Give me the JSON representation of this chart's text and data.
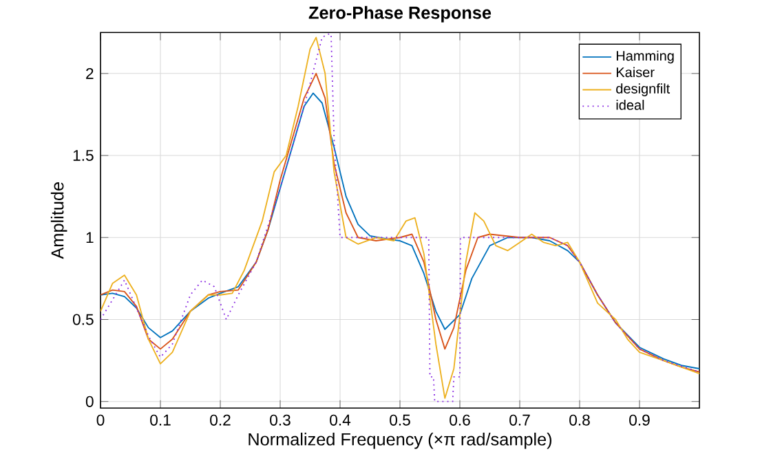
{
  "chart_data": {
    "type": "line",
    "title": "Zero-Phase Response",
    "xlabel": "Normalized Frequency  (×π rad/sample)",
    "ylabel": "Amplitude",
    "xlim": [
      0,
      1
    ],
    "ylim": [
      -0.04,
      2.25
    ],
    "xticks": [
      0,
      0.1,
      0.2,
      0.3,
      0.4,
      0.5,
      0.6,
      0.7,
      0.8,
      0.9
    ],
    "yticks": [
      0,
      0.5,
      1,
      1.5,
      2
    ],
    "grid": true,
    "legend": "top right",
    "marker": "none",
    "series": [
      {
        "name": "Hamming",
        "color": "#0072bd",
        "line_style": "solid",
        "x": [
          0,
          0.02,
          0.04,
          0.06,
          0.08,
          0.1,
          0.12,
          0.15,
          0.18,
          0.2,
          0.23,
          0.26,
          0.28,
          0.3,
          0.32,
          0.34,
          0.355,
          0.37,
          0.39,
          0.41,
          0.43,
          0.45,
          0.48,
          0.5,
          0.52,
          0.54,
          0.56,
          0.575,
          0.6,
          0.62,
          0.65,
          0.68,
          0.72,
          0.75,
          0.78,
          0.8,
          0.83,
          0.86,
          0.9,
          0.94,
          0.97,
          1
        ],
        "values": [
          0.65,
          0.66,
          0.64,
          0.57,
          0.45,
          0.39,
          0.43,
          0.55,
          0.63,
          0.66,
          0.7,
          0.85,
          1.05,
          1.3,
          1.55,
          1.8,
          1.88,
          1.82,
          1.55,
          1.25,
          1.08,
          1.01,
          0.99,
          0.98,
          0.95,
          0.78,
          0.55,
          0.44,
          0.53,
          0.75,
          0.95,
          1.0,
          1.0,
          0.98,
          0.92,
          0.85,
          0.65,
          0.48,
          0.33,
          0.26,
          0.22,
          0.2
        ]
      },
      {
        "name": "Kaiser",
        "color": "#d95319",
        "line_style": "solid",
        "x": [
          0,
          0.02,
          0.04,
          0.06,
          0.08,
          0.1,
          0.12,
          0.15,
          0.18,
          0.2,
          0.23,
          0.26,
          0.28,
          0.3,
          0.32,
          0.34,
          0.36,
          0.375,
          0.39,
          0.41,
          0.43,
          0.46,
          0.5,
          0.52,
          0.54,
          0.56,
          0.575,
          0.59,
          0.61,
          0.63,
          0.65,
          0.7,
          0.75,
          0.78,
          0.8,
          0.83,
          0.86,
          0.9,
          0.94,
          0.97,
          1
        ],
        "values": [
          0.65,
          0.68,
          0.67,
          0.58,
          0.38,
          0.32,
          0.38,
          0.55,
          0.65,
          0.67,
          0.68,
          0.85,
          1.05,
          1.35,
          1.6,
          1.85,
          2.0,
          1.85,
          1.45,
          1.15,
          1.0,
          0.98,
          1.0,
          1.02,
          0.85,
          0.5,
          0.32,
          0.45,
          0.8,
          1.0,
          1.02,
          1.0,
          1.0,
          0.95,
          0.85,
          0.65,
          0.48,
          0.32,
          0.25,
          0.21,
          0.18
        ]
      },
      {
        "name": "designfilt",
        "color": "#edb120",
        "line_style": "solid",
        "x": [
          0,
          0.02,
          0.04,
          0.06,
          0.08,
          0.1,
          0.12,
          0.15,
          0.18,
          0.2,
          0.22,
          0.24,
          0.27,
          0.29,
          0.31,
          0.33,
          0.35,
          0.36,
          0.375,
          0.39,
          0.41,
          0.43,
          0.46,
          0.49,
          0.51,
          0.525,
          0.54,
          0.56,
          0.575,
          0.59,
          0.61,
          0.625,
          0.64,
          0.66,
          0.68,
          0.7,
          0.72,
          0.74,
          0.76,
          0.78,
          0.8,
          0.83,
          0.86,
          0.88,
          0.9,
          0.94,
          0.97,
          1
        ],
        "values": [
          0.55,
          0.72,
          0.77,
          0.65,
          0.38,
          0.23,
          0.3,
          0.55,
          0.65,
          0.65,
          0.66,
          0.8,
          1.1,
          1.4,
          1.5,
          1.8,
          2.15,
          2.22,
          2.0,
          1.4,
          1.0,
          0.96,
          1.0,
          0.98,
          1.1,
          1.12,
          0.9,
          0.35,
          0.02,
          0.2,
          0.85,
          1.15,
          1.1,
          0.95,
          0.92,
          0.97,
          1.02,
          0.97,
          0.95,
          0.97,
          0.85,
          0.6,
          0.5,
          0.38,
          0.3,
          0.25,
          0.21,
          0.17
        ]
      },
      {
        "name": "ideal",
        "color": "#8a2be2",
        "line_style": "dotted",
        "x": [
          0,
          0.04,
          0.08,
          0.1,
          0.12,
          0.15,
          0.17,
          0.19,
          0.21,
          0.23,
          0.26,
          0.3,
          0.34,
          0.37,
          0.38,
          0.385,
          0.39,
          0.4,
          0.45,
          0.5,
          0.548,
          0.55,
          0.556,
          0.558,
          0.588,
          0.59,
          0.6,
          0.601,
          0.65,
          0.7,
          0.75,
          0.78,
          0.8,
          0.83,
          0.86,
          0.9,
          0.94,
          1
        ],
        "values": [
          0.5,
          0.74,
          0.4,
          0.27,
          0.35,
          0.65,
          0.74,
          0.7,
          0.5,
          0.65,
          0.85,
          1.3,
          1.8,
          2.22,
          2.24,
          2.24,
          1.6,
          1.0,
          1.0,
          1.0,
          1.0,
          0.15,
          0.15,
          0.0,
          0.0,
          0.15,
          0.15,
          1.0,
          1.0,
          1.0,
          1.0,
          0.95,
          0.85,
          0.65,
          0.48,
          0.32,
          0.25,
          0.18
        ]
      }
    ]
  }
}
